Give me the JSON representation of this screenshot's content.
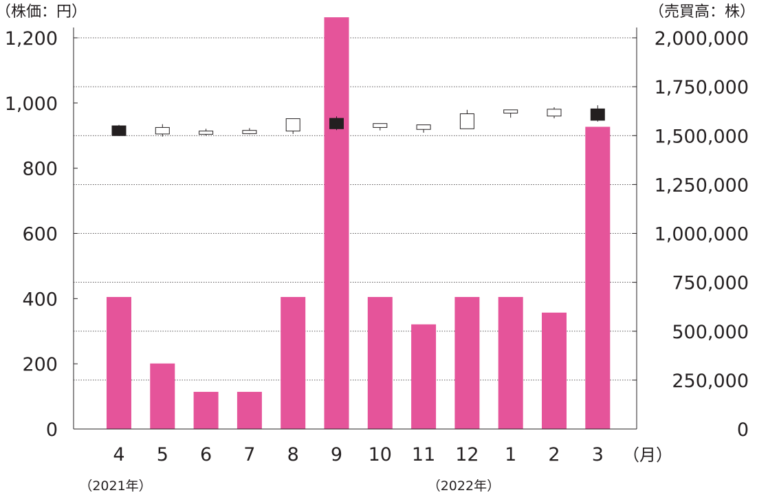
{
  "chart_data": {
    "type": "bar",
    "left_unit_label": "（株価：円）",
    "right_unit_label": "（売買高：株）",
    "month_suffix": "（月）",
    "categories": [
      "4",
      "5",
      "6",
      "7",
      "8",
      "9",
      "10",
      "11",
      "12",
      "1",
      "2",
      "3"
    ],
    "year_labels": [
      {
        "text": "（2021年）",
        "category": "4"
      },
      {
        "text": "（2022年）",
        "category": "12"
      }
    ],
    "left_axis": {
      "min": 0,
      "max": 1200,
      "ticks": [
        "0",
        "200",
        "400",
        "600",
        "800",
        "1,000",
        "1,200"
      ]
    },
    "right_axis": {
      "min": 0,
      "max": 2000000,
      "ticks": [
        "0",
        "250,000",
        "500,000",
        "750,000",
        "1,000,000",
        "1,250,000",
        "1,500,000",
        "1,750,000",
        "2,000,000"
      ]
    },
    "grid": "dotted horizontal lines at right-axis ticks",
    "volume": {
      "axis": "right",
      "color": "#e5549a",
      "values": [
        675000,
        335000,
        190000,
        190000,
        675000,
        2105000,
        675000,
        535000,
        675000,
        675000,
        595000,
        1545000
      ]
    },
    "price": {
      "axis": "left",
      "type": "candlestick",
      "up_color": "#ffffff",
      "down_color": "#231f20",
      "candles": [
        {
          "open": 930,
          "close": 900,
          "high": 933,
          "low": 899
        },
        {
          "open": 905,
          "close": 925,
          "high": 935,
          "low": 897
        },
        {
          "open": 904,
          "close": 914,
          "high": 921,
          "low": 900
        },
        {
          "open": 906,
          "close": 916,
          "high": 923,
          "low": 904
        },
        {
          "open": 914,
          "close": 952,
          "high": 952,
          "low": 905
        },
        {
          "open": 953,
          "close": 921,
          "high": 959,
          "low": 917
        },
        {
          "open": 925,
          "close": 937,
          "high": 937,
          "low": 916
        },
        {
          "open": 919,
          "close": 933,
          "high": 933,
          "low": 909
        },
        {
          "open": 921,
          "close": 967,
          "high": 979,
          "low": 921
        },
        {
          "open": 969,
          "close": 979,
          "high": 979,
          "low": 955
        },
        {
          "open": 960,
          "close": 981,
          "high": 987,
          "low": 953
        },
        {
          "open": 982,
          "close": 947,
          "high": 993,
          "low": 943
        }
      ]
    }
  }
}
